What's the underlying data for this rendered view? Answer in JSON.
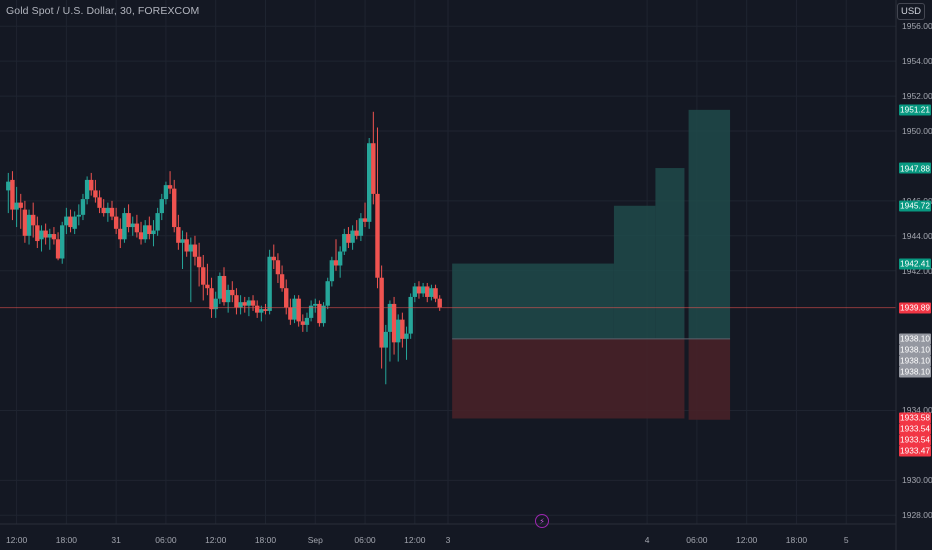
{
  "header": {
    "title": "Gold Spot / U.S. Dollar, 30, FOREXCOM",
    "currency_button": "USD"
  },
  "colors": {
    "background": "#141823",
    "grid": "#1f2430",
    "up": "#26a69a",
    "down": "#ef5350",
    "last_price_line": "#ef5350",
    "target_zone": "#1e4a4a",
    "stop_zone": "#4a2228",
    "entry_label": "#787b86"
  },
  "event_marker_icon": "lightning-icon",
  "chart_data": {
    "type": "candlestick",
    "title": "Gold Spot / U.S. Dollar, 30, FOREXCOM",
    "y_axis": {
      "ticks": [
        "1956.00",
        "1954.00",
        "1952.00",
        "1950.00",
        "1946.00",
        "1944.00",
        "1942.00",
        "1934.00",
        "1930.00",
        "1928.00"
      ],
      "range": [
        1927.5,
        1957.5
      ],
      "side": "right"
    },
    "x_axis": {
      "ticks": [
        "12:00",
        "18:00",
        "31",
        "06:00",
        "12:00",
        "18:00",
        "Sep",
        "06:00",
        "12:00",
        "3",
        "4",
        "06:00",
        "12:00",
        "18:00",
        "5"
      ],
      "range": [
        "2023-08-30 10:00",
        "2023-09-05 06:00"
      ]
    },
    "grid": true,
    "candles": [
      {
        "time": "2023-08-30 11:00",
        "open": 1946.6,
        "high": 1947.6,
        "low": 1945.3,
        "close": 1947.1
      },
      {
        "time": "2023-08-30 11:30",
        "open": 1947.2,
        "high": 1947.7,
        "low": 1944.9,
        "close": 1945.5
      },
      {
        "time": "2023-08-30 12:00",
        "open": 1945.5,
        "high": 1946.8,
        "low": 1944.5,
        "close": 1945.9
      },
      {
        "time": "2023-08-30 12:30",
        "open": 1945.9,
        "high": 1946.4,
        "low": 1944.4,
        "close": 1945.6
      },
      {
        "time": "2023-08-30 13:00",
        "open": 1945.5,
        "high": 1946.0,
        "low": 1943.6,
        "close": 1944.0
      },
      {
        "time": "2023-08-30 13:30",
        "open": 1944.0,
        "high": 1945.5,
        "low": 1943.5,
        "close": 1945.2
      },
      {
        "time": "2023-08-30 14:00",
        "open": 1945.2,
        "high": 1945.9,
        "low": 1943.9,
        "close": 1944.6
      },
      {
        "time": "2023-08-30 14:30",
        "open": 1944.6,
        "high": 1945.1,
        "low": 1943.3,
        "close": 1943.7
      },
      {
        "time": "2023-08-30 15:00",
        "open": 1943.8,
        "high": 1944.6,
        "low": 1943.1,
        "close": 1944.3
      },
      {
        "time": "2023-08-30 15:30",
        "open": 1944.3,
        "high": 1944.7,
        "low": 1943.5,
        "close": 1943.9
      },
      {
        "time": "2023-08-30 16:00",
        "open": 1943.9,
        "high": 1944.4,
        "low": 1943.2,
        "close": 1944.1
      },
      {
        "time": "2023-08-30 16:30",
        "open": 1944.1,
        "high": 1944.5,
        "low": 1943.5,
        "close": 1943.8
      },
      {
        "time": "2023-08-30 17:00",
        "open": 1943.8,
        "high": 1944.2,
        "low": 1942.6,
        "close": 1942.7
      },
      {
        "time": "2023-08-30 17:30",
        "open": 1942.7,
        "high": 1944.8,
        "low": 1942.4,
        "close": 1944.6
      },
      {
        "time": "2023-08-30 18:00",
        "open": 1944.6,
        "high": 1945.6,
        "low": 1944.1,
        "close": 1945.1
      },
      {
        "time": "2023-08-30 18:30",
        "open": 1945.1,
        "high": 1945.5,
        "low": 1944.2,
        "close": 1944.5
      },
      {
        "time": "2023-08-30 19:00",
        "open": 1944.4,
        "high": 1945.4,
        "low": 1944.1,
        "close": 1945.1
      },
      {
        "time": "2023-08-30 19:30",
        "open": 1945.1,
        "high": 1945.8,
        "low": 1944.6,
        "close": 1945.2
      },
      {
        "time": "2023-08-30 20:00",
        "open": 1945.2,
        "high": 1946.4,
        "low": 1944.9,
        "close": 1946.1
      },
      {
        "time": "2023-08-30 20:30",
        "open": 1946.1,
        "high": 1947.4,
        "low": 1945.8,
        "close": 1947.2
      },
      {
        "time": "2023-08-30 21:00",
        "open": 1947.2,
        "high": 1947.6,
        "low": 1946.3,
        "close": 1946.6
      },
      {
        "time": "2023-08-30 21:30",
        "open": 1946.6,
        "high": 1947.2,
        "low": 1945.9,
        "close": 1946.2
      },
      {
        "time": "2023-08-30 22:00",
        "open": 1946.2,
        "high": 1946.6,
        "low": 1945.3,
        "close": 1945.6
      },
      {
        "time": "2023-08-30 22:30",
        "open": 1945.6,
        "high": 1946.1,
        "low": 1945.1,
        "close": 1945.3
      },
      {
        "time": "2023-08-30 23:00",
        "open": 1945.3,
        "high": 1945.9,
        "low": 1944.8,
        "close": 1945.6
      },
      {
        "time": "2023-08-30 23:30",
        "open": 1945.6,
        "high": 1946.0,
        "low": 1944.9,
        "close": 1945.1
      },
      {
        "time": "2023-08-31 00:00",
        "open": 1945.1,
        "high": 1945.6,
        "low": 1944.1,
        "close": 1944.4
      },
      {
        "time": "2023-08-31 00:30",
        "open": 1944.4,
        "high": 1945.0,
        "low": 1943.3,
        "close": 1943.8
      },
      {
        "time": "2023-08-31 01:00",
        "open": 1943.8,
        "high": 1945.6,
        "low": 1943.6,
        "close": 1945.3
      },
      {
        "time": "2023-08-31 01:30",
        "open": 1945.3,
        "high": 1945.8,
        "low": 1944.2,
        "close": 1944.5
      },
      {
        "time": "2023-08-31 02:00",
        "open": 1944.5,
        "high": 1945.1,
        "low": 1944.0,
        "close": 1944.7
      },
      {
        "time": "2023-08-31 02:30",
        "open": 1944.7,
        "high": 1945.2,
        "low": 1943.9,
        "close": 1944.2
      },
      {
        "time": "2023-08-31 03:00",
        "open": 1944.2,
        "high": 1944.8,
        "low": 1943.5,
        "close": 1943.8
      },
      {
        "time": "2023-08-31 03:30",
        "open": 1943.8,
        "high": 1944.9,
        "low": 1943.6,
        "close": 1944.6
      },
      {
        "time": "2023-08-31 04:00",
        "open": 1944.6,
        "high": 1945.1,
        "low": 1943.8,
        "close": 1944.1
      },
      {
        "time": "2023-08-31 04:30",
        "open": 1944.1,
        "high": 1944.9,
        "low": 1943.4,
        "close": 1944.3
      },
      {
        "time": "2023-08-31 05:00",
        "open": 1944.3,
        "high": 1945.6,
        "low": 1944.0,
        "close": 1945.3
      },
      {
        "time": "2023-08-31 05:30",
        "open": 1945.3,
        "high": 1946.4,
        "low": 1944.9,
        "close": 1946.1
      },
      {
        "time": "2023-08-31 06:00",
        "open": 1946.1,
        "high": 1947.1,
        "low": 1945.8,
        "close": 1946.9
      },
      {
        "time": "2023-08-31 06:30",
        "open": 1946.9,
        "high": 1947.7,
        "low": 1946.4,
        "close": 1946.7
      },
      {
        "time": "2023-08-31 07:00",
        "open": 1946.7,
        "high": 1947.2,
        "low": 1944.2,
        "close": 1944.5
      },
      {
        "time": "2023-08-31 07:30",
        "open": 1944.5,
        "high": 1945.2,
        "low": 1943.2,
        "close": 1943.6
      },
      {
        "time": "2023-08-31 08:00",
        "open": 1943.6,
        "high": 1944.3,
        "low": 1942.1,
        "close": 1943.8
      },
      {
        "time": "2023-08-31 08:30",
        "open": 1943.8,
        "high": 1944.2,
        "low": 1942.8,
        "close": 1943.1
      },
      {
        "time": "2023-08-31 09:00",
        "open": 1943.1,
        "high": 1943.9,
        "low": 1940.2,
        "close": 1943.5
      },
      {
        "time": "2023-08-31 09:30",
        "open": 1943.5,
        "high": 1944.0,
        "low": 1942.3,
        "close": 1942.8
      },
      {
        "time": "2023-08-31 10:00",
        "open": 1942.8,
        "high": 1943.6,
        "low": 1941.1,
        "close": 1942.2
      },
      {
        "time": "2023-08-31 10:30",
        "open": 1942.2,
        "high": 1942.9,
        "low": 1940.3,
        "close": 1941.2
      },
      {
        "time": "2023-08-31 11:00",
        "open": 1941.2,
        "high": 1942.4,
        "low": 1940.6,
        "close": 1941.0
      },
      {
        "time": "2023-08-31 11:30",
        "open": 1941.0,
        "high": 1941.6,
        "low": 1939.3,
        "close": 1939.8
      },
      {
        "time": "2023-08-31 12:00",
        "open": 1939.8,
        "high": 1940.8,
        "low": 1939.3,
        "close": 1940.4
      },
      {
        "time": "2023-08-31 12:30",
        "open": 1940.4,
        "high": 1941.9,
        "low": 1940.1,
        "close": 1941.7
      },
      {
        "time": "2023-08-31 13:00",
        "open": 1941.7,
        "high": 1942.2,
        "low": 1940.0,
        "close": 1940.2
      },
      {
        "time": "2023-08-31 13:30",
        "open": 1940.2,
        "high": 1941.2,
        "low": 1939.6,
        "close": 1940.9
      },
      {
        "time": "2023-08-31 14:00",
        "open": 1940.9,
        "high": 1941.4,
        "low": 1940.2,
        "close": 1940.6
      },
      {
        "time": "2023-08-31 14:30",
        "open": 1940.6,
        "high": 1941.0,
        "low": 1939.5,
        "close": 1939.9
      },
      {
        "time": "2023-08-31 15:00",
        "open": 1939.9,
        "high": 1940.6,
        "low": 1939.5,
        "close": 1940.2
      },
      {
        "time": "2023-08-31 15:30",
        "open": 1940.2,
        "high": 1940.5,
        "low": 1939.6,
        "close": 1940.0
      },
      {
        "time": "2023-08-31 16:00",
        "open": 1940.0,
        "high": 1940.5,
        "low": 1939.4,
        "close": 1940.3
      },
      {
        "time": "2023-08-31 16:30",
        "open": 1940.3,
        "high": 1940.6,
        "low": 1939.7,
        "close": 1940.0
      },
      {
        "time": "2023-08-31 17:00",
        "open": 1940.0,
        "high": 1940.3,
        "low": 1939.3,
        "close": 1939.6
      },
      {
        "time": "2023-08-31 17:30",
        "open": 1939.6,
        "high": 1940.0,
        "low": 1939.1,
        "close": 1939.8
      },
      {
        "time": "2023-08-31 18:00",
        "open": 1939.8,
        "high": 1940.1,
        "low": 1939.5,
        "close": 1939.7
      },
      {
        "time": "2023-08-31 18:30",
        "open": 1939.7,
        "high": 1943.2,
        "low": 1939.5,
        "close": 1942.8
      },
      {
        "time": "2023-08-31 19:00",
        "open": 1942.8,
        "high": 1943.5,
        "low": 1942.1,
        "close": 1942.6
      },
      {
        "time": "2023-08-31 19:30",
        "open": 1942.6,
        "high": 1943.0,
        "low": 1941.3,
        "close": 1941.8
      },
      {
        "time": "2023-08-31 20:00",
        "open": 1941.8,
        "high": 1942.3,
        "low": 1940.8,
        "close": 1941.0
      },
      {
        "time": "2023-08-31 20:30",
        "open": 1941.0,
        "high": 1941.5,
        "low": 1939.5,
        "close": 1939.9
      },
      {
        "time": "2023-08-31 21:00",
        "open": 1939.9,
        "high": 1940.4,
        "low": 1938.9,
        "close": 1939.2
      },
      {
        "time": "2023-08-31 21:30",
        "open": 1939.2,
        "high": 1940.6,
        "low": 1939.0,
        "close": 1940.4
      },
      {
        "time": "2023-08-31 22:00",
        "open": 1940.4,
        "high": 1940.6,
        "low": 1938.8,
        "close": 1939.1
      },
      {
        "time": "2023-08-31 22:30",
        "open": 1939.1,
        "high": 1939.5,
        "low": 1938.5,
        "close": 1938.9
      },
      {
        "time": "2023-08-31 23:00",
        "open": 1938.9,
        "high": 1939.6,
        "low": 1938.5,
        "close": 1939.3
      },
      {
        "time": "2023-08-31 23:30",
        "open": 1939.3,
        "high": 1940.3,
        "low": 1939.1,
        "close": 1940.0
      },
      {
        "time": "2023-09-01 00:00",
        "open": 1940.0,
        "high": 1940.4,
        "low": 1939.6,
        "close": 1940.1
      },
      {
        "time": "2023-09-01 00:30",
        "open": 1940.1,
        "high": 1940.3,
        "low": 1938.8,
        "close": 1939.0
      },
      {
        "time": "2023-09-01 01:00",
        "open": 1939.0,
        "high": 1940.2,
        "low": 1938.8,
        "close": 1940.0
      },
      {
        "time": "2023-09-01 01:30",
        "open": 1940.0,
        "high": 1941.6,
        "low": 1939.8,
        "close": 1941.4
      },
      {
        "time": "2023-09-01 02:00",
        "open": 1941.4,
        "high": 1942.8,
        "low": 1941.1,
        "close": 1942.6
      },
      {
        "time": "2023-09-01 02:30",
        "open": 1942.6,
        "high": 1943.8,
        "low": 1942.0,
        "close": 1942.3
      },
      {
        "time": "2023-09-01 03:00",
        "open": 1942.3,
        "high": 1943.4,
        "low": 1941.6,
        "close": 1943.1
      },
      {
        "time": "2023-09-01 03:30",
        "open": 1943.1,
        "high": 1944.4,
        "low": 1942.9,
        "close": 1944.1
      },
      {
        "time": "2023-09-01 04:00",
        "open": 1944.1,
        "high": 1944.5,
        "low": 1943.3,
        "close": 1943.6
      },
      {
        "time": "2023-09-01 04:30",
        "open": 1943.6,
        "high": 1944.6,
        "low": 1943.2,
        "close": 1944.3
      },
      {
        "time": "2023-09-01 05:00",
        "open": 1944.3,
        "high": 1944.9,
        "low": 1943.8,
        "close": 1944.0
      },
      {
        "time": "2023-09-01 05:30",
        "open": 1944.0,
        "high": 1945.3,
        "low": 1943.7,
        "close": 1945.0
      },
      {
        "time": "2023-09-01 06:00",
        "open": 1945.0,
        "high": 1945.9,
        "low": 1944.5,
        "close": 1944.8
      },
      {
        "time": "2023-09-01 06:30",
        "open": 1944.8,
        "high": 1949.6,
        "low": 1944.4,
        "close": 1949.3
      },
      {
        "time": "2023-09-01 07:00",
        "open": 1949.3,
        "high": 1951.1,
        "low": 1945.8,
        "close": 1946.4
      },
      {
        "time": "2023-09-01 07:30",
        "open": 1946.4,
        "high": 1950.2,
        "low": 1941.0,
        "close": 1941.6
      },
      {
        "time": "2023-09-01 08:00",
        "open": 1941.6,
        "high": 1942.3,
        "low": 1936.4,
        "close": 1937.6
      },
      {
        "time": "2023-09-01 08:30",
        "open": 1937.6,
        "high": 1938.9,
        "low": 1935.5,
        "close": 1938.5
      },
      {
        "time": "2023-09-01 09:00",
        "open": 1938.5,
        "high": 1940.3,
        "low": 1936.8,
        "close": 1940.1
      },
      {
        "time": "2023-09-01 09:30",
        "open": 1940.1,
        "high": 1940.5,
        "low": 1937.2,
        "close": 1937.9
      },
      {
        "time": "2023-09-01 10:00",
        "open": 1937.9,
        "high": 1939.5,
        "low": 1936.8,
        "close": 1939.2
      },
      {
        "time": "2023-09-01 10:30",
        "open": 1939.2,
        "high": 1939.6,
        "low": 1937.6,
        "close": 1938.1
      },
      {
        "time": "2023-09-01 11:00",
        "open": 1938.1,
        "high": 1938.8,
        "low": 1936.9,
        "close": 1938.4
      },
      {
        "time": "2023-09-01 11:30",
        "open": 1938.4,
        "high": 1940.7,
        "low": 1938.1,
        "close": 1940.5
      },
      {
        "time": "2023-09-01 12:00",
        "open": 1940.5,
        "high": 1941.3,
        "low": 1940.2,
        "close": 1941.1
      },
      {
        "time": "2023-09-01 12:30",
        "open": 1941.1,
        "high": 1941.4,
        "low": 1940.4,
        "close": 1940.7
      },
      {
        "time": "2023-09-01 13:00",
        "open": 1940.7,
        "high": 1941.3,
        "low": 1940.5,
        "close": 1941.1
      },
      {
        "time": "2023-09-01 13:30",
        "open": 1941.1,
        "high": 1941.3,
        "low": 1940.2,
        "close": 1940.5
      },
      {
        "time": "2023-09-01 14:00",
        "open": 1940.5,
        "high": 1941.2,
        "low": 1940.3,
        "close": 1941.0
      },
      {
        "time": "2023-09-01 14:30",
        "open": 1941.0,
        "high": 1941.2,
        "low": 1940.2,
        "close": 1940.4
      },
      {
        "time": "2023-09-01 15:00",
        "open": 1940.4,
        "high": 1940.6,
        "low": 1939.7,
        "close": 1939.9
      }
    ],
    "last_price": {
      "value": 1939.89,
      "label": "1939.89"
    },
    "projections": {
      "entry": 1938.1,
      "targets": [
        {
          "start": "2023-09-03 00:30",
          "end": "2023-09-03 20:00",
          "value": 1942.41
        },
        {
          "start": "2023-09-03 20:00",
          "end": "2023-09-04 01:00",
          "value": 1945.72
        },
        {
          "start": "2023-09-04 01:00",
          "end": "2023-09-04 04:30",
          "value": 1947.88
        },
        {
          "start": "2023-09-04 05:00",
          "end": "2023-09-04 10:00",
          "value": 1951.21
        }
      ],
      "stops": [
        {
          "start": "2023-09-03 00:30",
          "end": "2023-09-04 04:30",
          "value": 1933.54
        },
        {
          "start": "2023-09-04 05:00",
          "end": "2023-09-04 10:00",
          "value": 1933.47
        }
      ]
    },
    "price_labels": [
      {
        "value": 1951.21,
        "text": "1951.21",
        "kind": "target"
      },
      {
        "value": 1947.88,
        "text": "1947.88",
        "kind": "target"
      },
      {
        "value": 1945.72,
        "text": "1945.72",
        "kind": "target"
      },
      {
        "value": 1942.41,
        "text": "1942.41",
        "kind": "target"
      },
      {
        "value": 1939.89,
        "text": "1939.89",
        "kind": "last"
      },
      {
        "value": 1938.1,
        "text": "1938.10",
        "kind": "entry"
      },
      {
        "value": 1938.1,
        "text": "1938.10",
        "kind": "entry"
      },
      {
        "value": 1938.1,
        "text": "1938.10",
        "kind": "entry"
      },
      {
        "value": 1938.1,
        "text": "1938.10",
        "kind": "entry"
      },
      {
        "value": 1933.58,
        "text": "1933.58",
        "kind": "stop"
      },
      {
        "value": 1933.54,
        "text": "1933.54",
        "kind": "stop"
      },
      {
        "value": 1933.54,
        "text": "1933.54",
        "kind": "stop"
      },
      {
        "value": 1933.47,
        "text": "1933.47",
        "kind": "stop"
      }
    ]
  }
}
